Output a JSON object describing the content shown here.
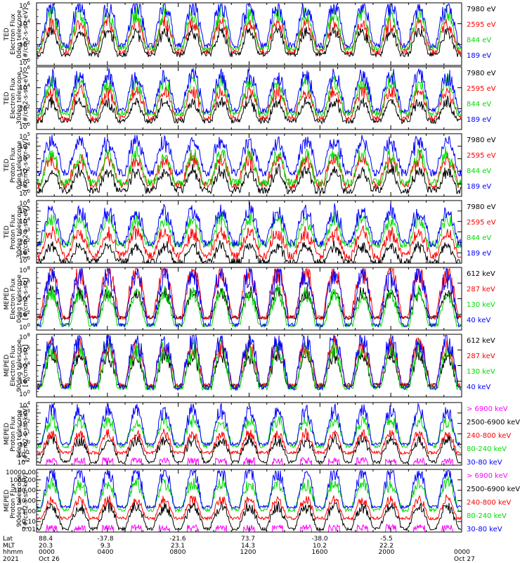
{
  "colors": {
    "black": "#000000",
    "blue": "#0000ff",
    "green": "#00dd00",
    "red": "#ff0000",
    "magenta": "#ff00ff"
  },
  "chart_data": [
    {
      "type": "line",
      "ylabel": [
        "TED",
        "Electron Flux",
        "0deg telescope",
        "[#/cm2-s-str-eV]"
      ],
      "yscale": "log",
      "yticks": [
        "10^6",
        "10^4",
        "10^2",
        "10^0"
      ],
      "legend": [
        {
          "label": "7980 eV",
          "color": "black"
        },
        {
          "label": "2595 eV",
          "color": "red"
        },
        {
          "label": "844 eV",
          "color": "green"
        },
        {
          "label": "189 eV",
          "color": "blue"
        }
      ]
    },
    {
      "type": "line",
      "ylabel": [
        "TED",
        "Electron Flux",
        "30deg telescope",
        "[#/cm2-s-str-eV]"
      ],
      "yscale": "log",
      "yticks": [
        "10^6",
        "10^4",
        "10^2",
        "10^0"
      ],
      "legend": [
        {
          "label": "7980 eV",
          "color": "black"
        },
        {
          "label": "2595 eV",
          "color": "red"
        },
        {
          "label": "844 eV",
          "color": "green"
        },
        {
          "label": "189 eV",
          "color": "blue"
        }
      ]
    },
    {
      "type": "line",
      "ylabel": [
        "TED",
        "Proton Flux",
        "0deg telescope",
        "[#/cm2-s-str-eV]"
      ],
      "yscale": "log",
      "yticks": [
        "10^5",
        "10^4",
        "10^3",
        "10^2",
        "10^1",
        "10^0"
      ],
      "legend": [
        {
          "label": "7980 eV",
          "color": "black"
        },
        {
          "label": "2595 eV",
          "color": "red"
        },
        {
          "label": "844 eV",
          "color": "green"
        },
        {
          "label": "189 eV",
          "color": "blue"
        }
      ]
    },
    {
      "type": "line",
      "ylabel": [
        "TED",
        "Proton Flux",
        "30deg telescope",
        "[#/cm2-s-str-eV]"
      ],
      "yscale": "log",
      "yticks": [
        "10^6",
        "10^5",
        "10^4",
        "10^3",
        "10^2",
        "10^1",
        "10^0"
      ],
      "legend": [
        {
          "label": "7980 eV",
          "color": "black"
        },
        {
          "label": "2595 eV",
          "color": "red"
        },
        {
          "label": "844 eV",
          "color": "green"
        },
        {
          "label": "189 eV",
          "color": "blue"
        }
      ]
    },
    {
      "type": "line",
      "ylabel": [
        "MEPED",
        "Electron Flux",
        "0deg telescope",
        "[#/cm2-s-str]"
      ],
      "yscale": "log",
      "yticks": [
        "10^8",
        "10^6",
        "10^4",
        "10^2",
        "10^0"
      ],
      "legend": [
        {
          "label": "612 keV",
          "color": "black"
        },
        {
          "label": "287 keV",
          "color": "red"
        },
        {
          "label": "130 keV",
          "color": "green"
        },
        {
          "label": "40 keV",
          "color": "blue"
        }
      ]
    },
    {
      "type": "line",
      "ylabel": [
        "MEPED",
        "Electron Flux",
        "90deg telescope",
        "[#/cm2-s-str]"
      ],
      "yscale": "log",
      "yticks": [
        "10^8",
        "10^6",
        "10^4",
        "10^2",
        "10^0"
      ],
      "legend": [
        {
          "label": "612 keV",
          "color": "black"
        },
        {
          "label": "287 keV",
          "color": "red"
        },
        {
          "label": "130 keV",
          "color": "green"
        },
        {
          "label": "40 keV",
          "color": "blue"
        }
      ]
    },
    {
      "type": "line",
      "ylabel": [
        "MEPED",
        "Proton Flux",
        "0deg telescope",
        "[#/cm2-s-str-keV]"
      ],
      "yscale": "log",
      "yticks": [
        "10^4",
        "10^3",
        "10^2",
        "10^1",
        "10^0",
        "10^-1",
        "10^-2"
      ],
      "legend": [
        {
          "label": "> 6900 keV",
          "color": "magenta"
        },
        {
          "label": "2500-6900 keV",
          "color": "black"
        },
        {
          "label": "240-800 keV",
          "color": "red"
        },
        {
          "label": "80-240 keV",
          "color": "green"
        },
        {
          "label": "30-80 keV",
          "color": "blue"
        }
      ]
    },
    {
      "type": "line",
      "ylabel": [
        "MEPED",
        "Proton Flux",
        "90deg telescope",
        "[#/cm2-s-str-keV]"
      ],
      "yscale": "log",
      "yticks": [
        "10000.00",
        "1000.00",
        "100.00",
        "10.00",
        "1.00",
        "0.10",
        "0.01"
      ],
      "legend": [
        {
          "label": "> 6900 keV",
          "color": "magenta"
        },
        {
          "label": "2500-6900 keV",
          "color": "black"
        },
        {
          "label": "240-800 keV",
          "color": "red"
        },
        {
          "label": "80-240 keV",
          "color": "green"
        },
        {
          "label": "30-80 keV",
          "color": "blue"
        }
      ]
    }
  ],
  "xaxis": {
    "row_labels": [
      "Lat",
      "MLT",
      "hhmm",
      "2021"
    ],
    "ticks": [
      {
        "lat": "88.4",
        "mlt": "20.3",
        "hhmm": "0000",
        "date": "Oct 26"
      },
      {
        "lat": "-37.8",
        "mlt": "9.3",
        "hhmm": "0400",
        "date": ""
      },
      {
        "lat": "-21.6",
        "mlt": "23.1",
        "hhmm": "0800",
        "date": ""
      },
      {
        "lat": "73.7",
        "mlt": "14.3",
        "hhmm": "1200",
        "date": ""
      },
      {
        "lat": "-38.0",
        "mlt": "10.2",
        "hhmm": "1600",
        "date": ""
      },
      {
        "lat": "-5.5",
        "mlt": "22.2",
        "hhmm": "2000",
        "date": ""
      },
      {
        "lat": "",
        "mlt": "",
        "hhmm": "0000",
        "date": "Oct 27"
      }
    ]
  }
}
